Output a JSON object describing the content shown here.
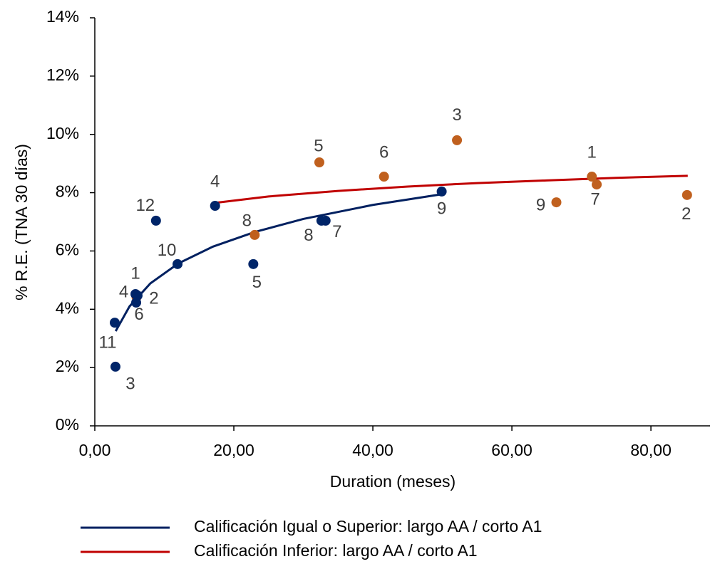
{
  "chart_data": {
    "type": "scatter",
    "xlabel": "Duration (meses)",
    "ylabel": "% R.E. (TNA 30 días)",
    "xlim": [
      0,
      88.5
    ],
    "ylim": [
      0,
      14
    ],
    "xticks": [
      {
        "value": 0,
        "label": "0,00"
      },
      {
        "value": 20,
        "label": "20,00"
      },
      {
        "value": 40,
        "label": "40,00"
      },
      {
        "value": 60,
        "label": "60,00"
      },
      {
        "value": 80,
        "label": "80,00"
      }
    ],
    "yticks": [
      {
        "value": 0,
        "label": "0%"
      },
      {
        "value": 2,
        "label": "2%"
      },
      {
        "value": 4,
        "label": "4%"
      },
      {
        "value": 6,
        "label": "6%"
      },
      {
        "value": 8,
        "label": "8%"
      },
      {
        "value": 10,
        "label": "10%"
      },
      {
        "value": 12,
        "label": "12%"
      },
      {
        "value": 14,
        "label": "14%"
      }
    ],
    "grid": false,
    "series": [
      {
        "color": "#c0601e",
        "x": [
          71.5,
          85.2,
          52.1,
          6.0,
          32.3,
          41.6,
          72.2,
          23.0,
          66.4
        ],
        "y": [
          8.55,
          7.92,
          9.8,
          4.42,
          9.04,
          8.55,
          8.28,
          6.55,
          7.67
        ],
        "labels": [
          "1",
          "2",
          "3",
          "4",
          "5",
          "6",
          "7",
          "8",
          "9"
        ]
      },
      {
        "color": "#002569",
        "x": [
          5.85,
          6.15,
          2.97,
          17.3,
          22.8,
          5.95,
          33.2,
          32.6,
          49.9,
          11.9,
          2.87,
          8.8
        ],
        "y": [
          4.52,
          4.47,
          2.03,
          7.55,
          5.55,
          4.23,
          7.04,
          7.04,
          8.04,
          5.55,
          3.54,
          7.04
        ],
        "labels": [
          "1",
          "2",
          "3",
          "4",
          "5",
          "6",
          "7",
          "8",
          "9",
          "10",
          "11",
          "12"
        ]
      }
    ],
    "trendlines": [
      {
        "name": "Calificación Igual o Superior: largo AA / corto A1",
        "color": "#002060",
        "x": [
          3,
          5,
          8,
          12,
          17,
          23,
          30,
          40,
          50
        ],
        "y": [
          3.25,
          4.1,
          4.89,
          5.57,
          6.15,
          6.65,
          7.1,
          7.58,
          7.95
        ]
      },
      {
        "name": "Calificación Inferior: largo AA / corto A1",
        "color": "#c00000",
        "x": [
          17.3,
          25,
          35,
          45,
          55,
          65,
          75,
          85.3
        ],
        "y": [
          7.65,
          7.87,
          8.06,
          8.21,
          8.33,
          8.42,
          8.51,
          8.58
        ]
      }
    ]
  }
}
